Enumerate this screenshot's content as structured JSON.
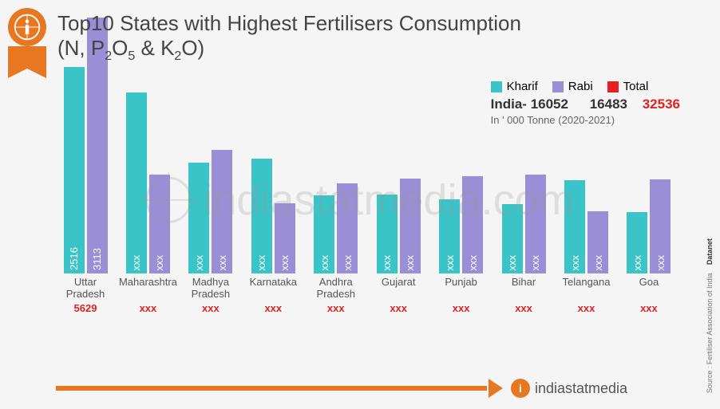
{
  "title": "Top10 States with Highest Fertilisers Consumption",
  "subtitle_prefix": "(N, P",
  "subtitle_mid1": "O",
  "subtitle_amp": " & K",
  "subtitle_mid2": "O)",
  "sub_2": "2",
  "sub_5": "5",
  "legend": {
    "kharif": {
      "label": "Kharif",
      "color": "#3bc4c7"
    },
    "rabi": {
      "label": "Rabi",
      "color": "#9a8fd6"
    },
    "total": {
      "label": "Total",
      "color": "#e42020"
    }
  },
  "india_label": "India-",
  "india_kharif": "16052",
  "india_rabi": "16483",
  "india_total": "32536",
  "unit": "In ' 000 Tonne (2020-2021)",
  "chart": {
    "max_value": 3200,
    "bar_colors": {
      "kharif": "#3bc4c7",
      "rabi": "#9a8fd6"
    },
    "states": [
      {
        "name": "Uttar Pradesh",
        "kharif": 2516,
        "kharif_label": "2516",
        "rabi": 3113,
        "rabi_label": "3113",
        "total": "5629"
      },
      {
        "name": "Maharashtra",
        "kharif": 2200,
        "kharif_label": "xxx",
        "rabi": 1200,
        "rabi_label": "xxx",
        "total": "xxx"
      },
      {
        "name": "Madhya Pradesh",
        "kharif": 1350,
        "kharif_label": "xxx",
        "rabi": 1500,
        "rabi_label": "xxx",
        "total": "xxx"
      },
      {
        "name": "Karnataka",
        "kharif": 1400,
        "kharif_label": "xxx",
        "rabi": 850,
        "rabi_label": "xxx",
        "total": "xxx"
      },
      {
        "name": "Andhra Pradesh",
        "kharif": 950,
        "kharif_label": "xxx",
        "rabi": 1100,
        "rabi_label": "xxx",
        "total": "xxx"
      },
      {
        "name": "Gujarat",
        "kharif": 960,
        "kharif_label": "xxx",
        "rabi": 1150,
        "rabi_label": "xxx",
        "total": "xxx"
      },
      {
        "name": "Punjab",
        "kharif": 900,
        "kharif_label": "xxx",
        "rabi": 1180,
        "rabi_label": "xxx",
        "total": "xxx"
      },
      {
        "name": "Bihar",
        "kharif": 840,
        "kharif_label": "xxx",
        "rabi": 1200,
        "rabi_label": "xxx",
        "total": "xxx"
      },
      {
        "name": "Telangana",
        "kharif": 1130,
        "kharif_label": "xxx",
        "rabi": 760,
        "rabi_label": "xxx",
        "total": "xxx"
      },
      {
        "name": "Goa",
        "kharif": 750,
        "kharif_label": "xxx",
        "rabi": 1140,
        "rabi_label": "xxx",
        "total": "xxx"
      }
    ]
  },
  "footer_brand": "indiastatmedia",
  "watermark": "indiastatmedia.com",
  "source": "Source : Fertiliser Association of India",
  "datanet": "Datanet"
}
